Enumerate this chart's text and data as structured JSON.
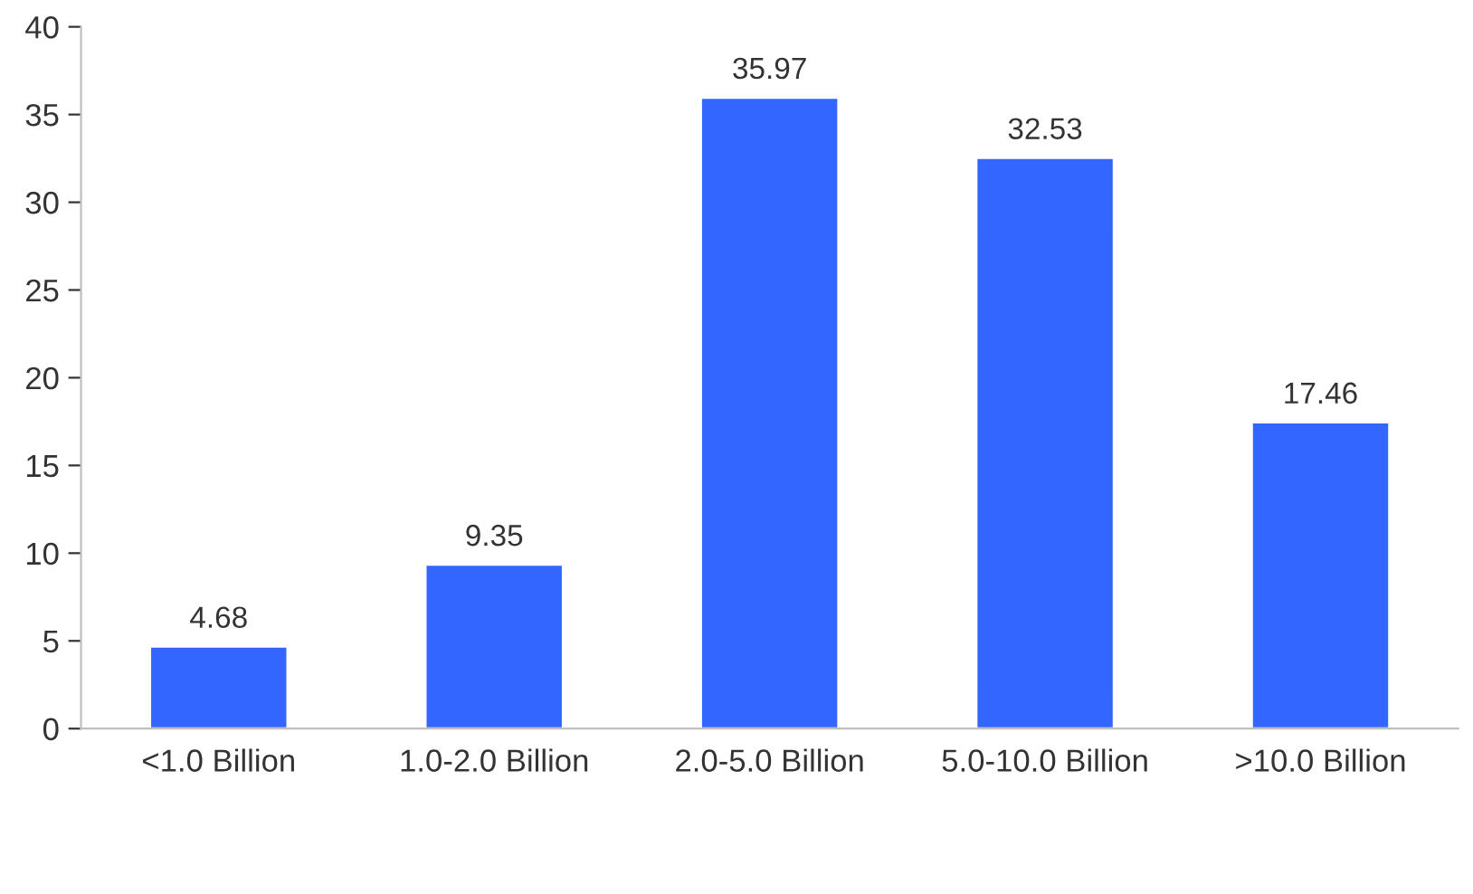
{
  "chart_data": {
    "type": "bar",
    "categories": [
      "<1.0 Billion",
      "1.0-2.0 Billion",
      "2.0-5.0 Billion",
      "5.0-10.0 Billion",
      ">10.0 Billion"
    ],
    "series": [
      {
        "color": "#3366ff",
        "values": [
          4.68,
          9.35,
          35.97,
          32.53,
          17.46
        ]
      }
    ],
    "ylim": [
      0,
      40
    ],
    "yticks": [
      0,
      5,
      10,
      15,
      20,
      25,
      30,
      35,
      40
    ],
    "grid": false,
    "data_labels": true
  }
}
